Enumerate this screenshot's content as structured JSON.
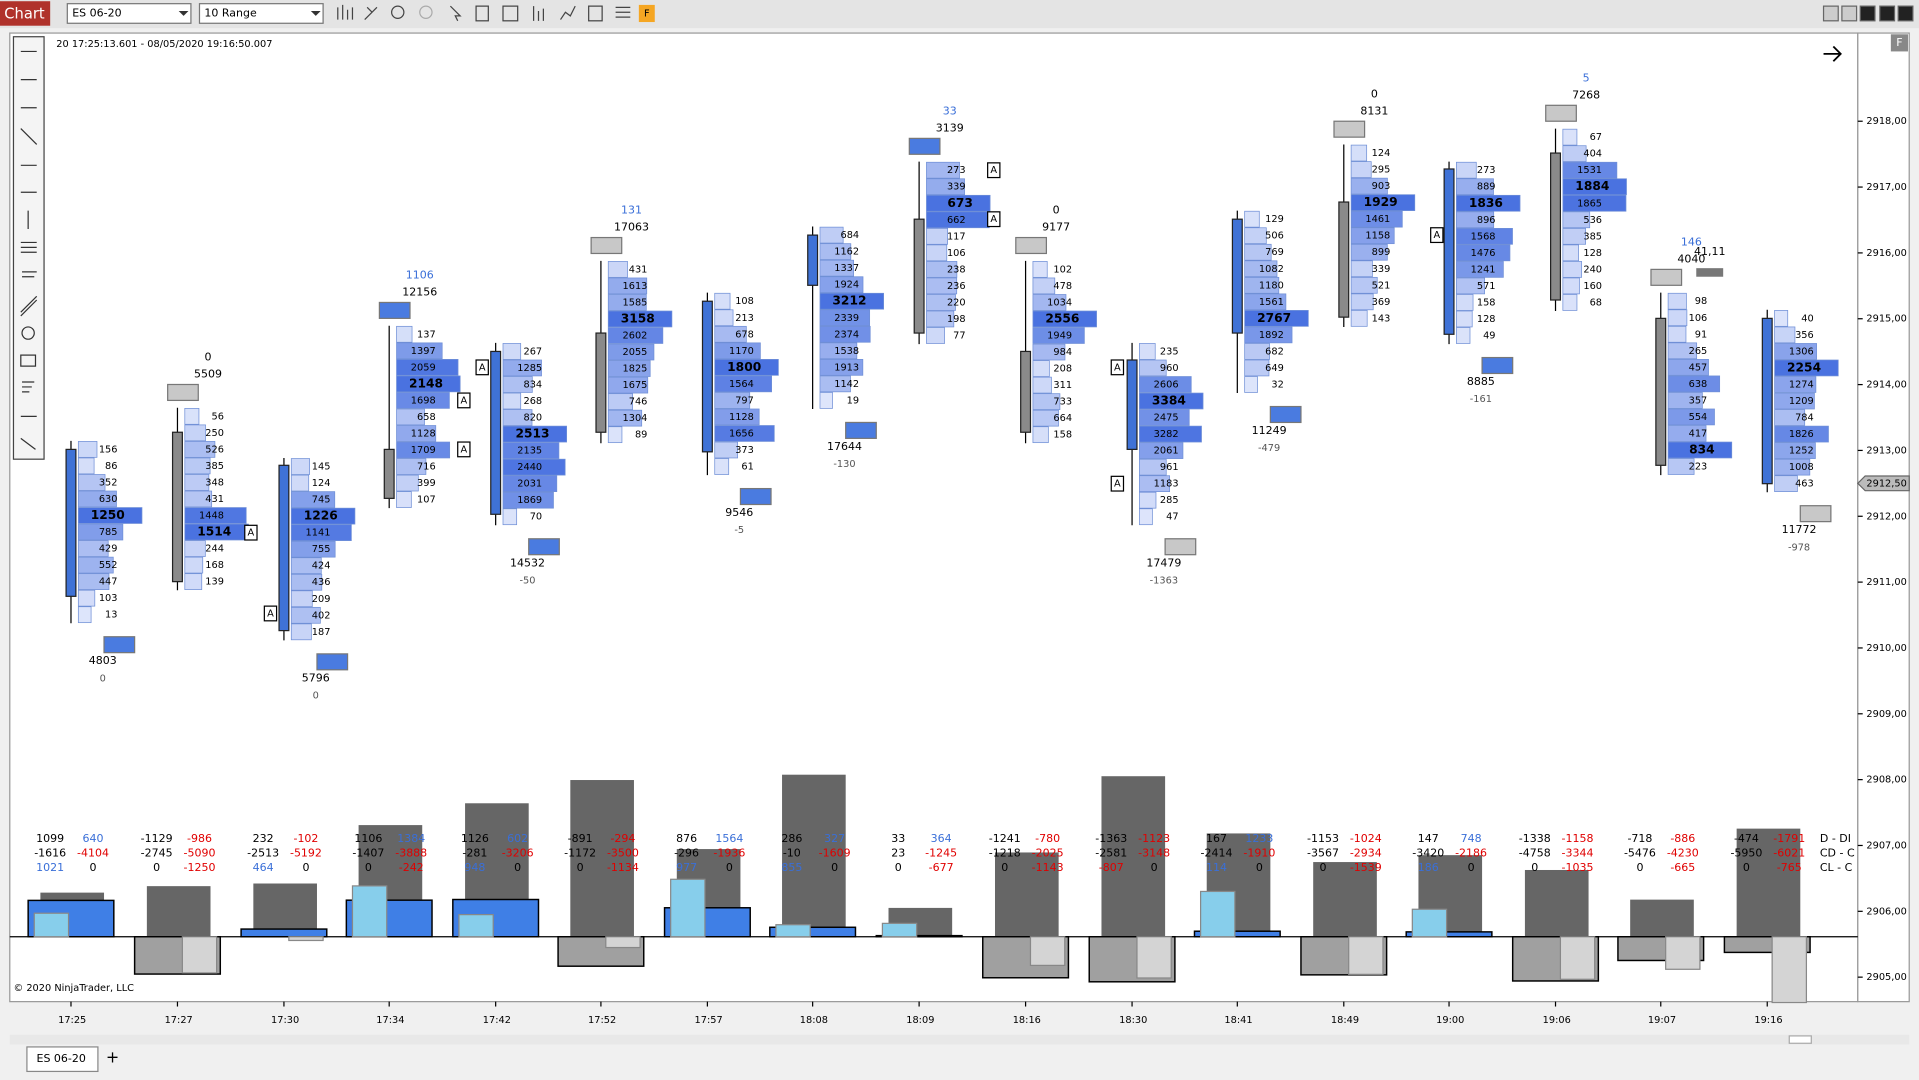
{
  "window": {
    "title": "Chart",
    "instrument": "ES 06-20",
    "bar_type": "10 Range",
    "panel_button": "F",
    "tab": "ES 06-20",
    "tab_add": "+"
  },
  "info": "20 17:25:13.601 - 08/05/2020 19:16:50.007",
  "copyright": "© 2020 NinjaTrader, LLC",
  "volume_marker": "A",
  "price_axis": {
    "ticks": [
      {
        "value": 2918,
        "label": "2918,00"
      },
      {
        "value": 2917,
        "label": "2917,00"
      },
      {
        "value": 2916,
        "label": "2916,00"
      },
      {
        "value": 2915,
        "label": "2915,00"
      },
      {
        "value": 2914,
        "label": "2914,00"
      },
      {
        "value": 2913,
        "label": "2913,00"
      },
      {
        "value": 2912,
        "label": "2912,00"
      },
      {
        "value": 2911,
        "label": "2911,00"
      },
      {
        "value": 2910,
        "label": "2910,00"
      },
      {
        "value": 2909,
        "label": "2909,00"
      },
      {
        "value": 2908,
        "label": "2908,00"
      },
      {
        "value": 2907,
        "label": "2907,00"
      },
      {
        "value": 2906,
        "label": "2906,00"
      },
      {
        "value": 2905,
        "label": "2905,00"
      }
    ],
    "current": {
      "value": 2912.5,
      "label": "2912,50"
    }
  },
  "time_axis": [
    "17:25",
    "17:27",
    "17:30",
    "17:34",
    "17:42",
    "17:52",
    "17:57",
    "18:08",
    "18:09",
    "18:16",
    "18:30",
    "18:41",
    "18:49",
    "19:00",
    "19:06",
    "19:07",
    "19:16"
  ],
  "bars": [
    {
      "rows": [
        156,
        86,
        352,
        630,
        1250,
        785,
        429,
        552,
        447,
        103,
        13
      ],
      "foot": [
        4803,
        0
      ]
    },
    {
      "head": [
        0,
        5509
      ],
      "rows": [
        56,
        250,
        526,
        385,
        348,
        431,
        1448,
        1514,
        244,
        168,
        139
      ]
    },
    {
      "rows": [
        145,
        124,
        745,
        1226,
        1141,
        755,
        424,
        436,
        209,
        402,
        187
      ],
      "foot": [
        5796,
        0
      ]
    },
    {
      "head": [
        1106,
        12156
      ],
      "rows": [
        137,
        1397,
        2059,
        2148,
        1698,
        658,
        1128,
        1709,
        716,
        399,
        107
      ]
    },
    {
      "rows": [
        267,
        1285,
        834,
        268,
        820,
        2513,
        2135,
        2440,
        2031,
        1869,
        70
      ],
      "foot": [
        14532,
        -50
      ]
    },
    {
      "head": [
        131,
        17063
      ],
      "rows": [
        431,
        1613,
        1585,
        3158,
        2602,
        2055,
        1825,
        1675,
        746,
        1304,
        89
      ]
    },
    {
      "rows": [
        108,
        213,
        678,
        1170,
        1800,
        1564,
        797,
        1128,
        1656,
        373,
        61
      ],
      "foot": [
        9546,
        -5
      ]
    },
    {
      "rows": [
        684,
        1162,
        1337,
        1924,
        3212,
        2339,
        2374,
        1538,
        1913,
        1142,
        19
      ],
      "foot": [
        17644,
        -130
      ]
    },
    {
      "head": [
        33,
        3139
      ],
      "rows": [
        273,
        339,
        673,
        662,
        117,
        106,
        238,
        236,
        220,
        198,
        77
      ]
    },
    {
      "head": [
        0,
        9177
      ],
      "rows": [
        102,
        478,
        1034,
        2556,
        1949,
        984,
        208,
        311,
        733,
        664,
        158
      ]
    },
    {
      "rows": [
        235,
        960,
        2606,
        3384,
        2475,
        3282,
        2061,
        961,
        1183,
        285,
        47
      ],
      "foot": [
        17479,
        -1363
      ]
    },
    {
      "rows": [
        129,
        506,
        769,
        1082,
        1180,
        1561,
        2767,
        1892,
        682,
        649,
        32
      ],
      "foot": [
        11249,
        -479
      ]
    },
    {
      "head": [
        0,
        8131
      ],
      "rows": [
        124,
        295,
        903,
        1929,
        1461,
        1158,
        899,
        339,
        521,
        369,
        143
      ]
    },
    {
      "rows": [
        273,
        889,
        1836,
        896,
        1568,
        1476,
        1241,
        571,
        158,
        128,
        49
      ],
      "foot": [
        8885,
        -161
      ]
    },
    {
      "head": [
        5,
        7268
      ],
      "rows": [
        67,
        404,
        1531,
        1884,
        1865,
        536,
        385,
        128,
        240,
        160,
        68
      ]
    },
    {
      "head": [
        146,
        4040
      ],
      "note": "41,11",
      "rows": [
        98,
        106,
        91,
        265,
        457,
        638,
        357,
        554,
        417,
        834,
        223
      ]
    },
    {
      "rows": [
        40,
        356,
        1306,
        2254,
        1274,
        1209,
        784,
        1826,
        1252,
        1008,
        463
      ],
      "foot": [
        11772,
        -978
      ]
    }
  ],
  "lower_panel": {
    "legend": [
      "D - DI",
      "CD - C",
      "CL - C"
    ],
    "columns": [
      [
        [
          1099,
          640
        ],
        [
          -1616,
          -4104
        ],
        [
          1021,
          0
        ]
      ],
      [
        [
          -1129,
          -986
        ],
        [
          -2745,
          -5090
        ],
        [
          0,
          -1250
        ]
      ],
      [
        [
          232,
          -102
        ],
        [
          -2513,
          -5192
        ],
        [
          464,
          0
        ]
      ],
      [
        [
          1106,
          1384
        ],
        [
          -1407,
          -3888
        ],
        [
          0,
          -242
        ]
      ],
      [
        [
          1126,
          602
        ],
        [
          -281,
          -3206
        ],
        [
          948,
          0
        ]
      ],
      [
        [
          -891,
          -294
        ],
        [
          -1172,
          -3500
        ],
        [
          0,
          -1134
        ]
      ],
      [
        [
          876,
          1564
        ],
        [
          -296,
          -1936
        ],
        [
          977,
          0
        ]
      ],
      [
        [
          286,
          327
        ],
        [
          -10,
          -1609
        ],
        [
          855,
          0
        ]
      ],
      [
        [
          33,
          364
        ],
        [
          23,
          -1245
        ],
        [
          0,
          -677
        ]
      ],
      [
        [
          -1241,
          -780
        ],
        [
          -1218,
          -2025
        ],
        [
          0,
          -1143
        ]
      ],
      [
        [
          -1363,
          -1123
        ],
        [
          -2581,
          -3148
        ],
        [
          -807,
          0
        ]
      ],
      [
        [
          167,
          1233
        ],
        [
          -2414,
          -1910
        ],
        [
          114,
          0
        ]
      ],
      [
        [
          -1153,
          -1024
        ],
        [
          -3567,
          -2934
        ],
        [
          0,
          -1539
        ]
      ],
      [
        [
          147,
          748
        ],
        [
          -3420,
          -2186
        ],
        [
          186,
          0
        ]
      ],
      [
        [
          -1338,
          -1158
        ],
        [
          -4758,
          -3344
        ],
        [
          0,
          -1035
        ]
      ],
      [
        [
          -718,
          -886
        ],
        [
          -5476,
          -4230
        ],
        [
          0,
          -665
        ]
      ],
      [
        [
          -474,
          -1791
        ],
        [
          -5950,
          -6021
        ],
        [
          0,
          -765
        ]
      ]
    ]
  }
}
